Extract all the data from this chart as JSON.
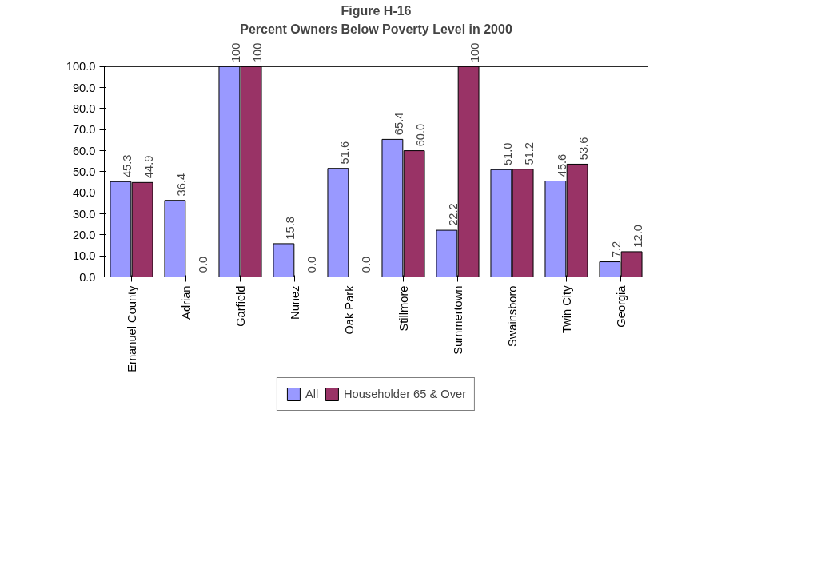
{
  "chart_data": {
    "type": "bar",
    "title": "Figure H-16",
    "subtitle": "Percent Owners Below Poverty Level in 2000",
    "categories": [
      "Emanuel County",
      "Adrian",
      "Garfield",
      "Nunez",
      "Oak Park",
      "Stillmore",
      "Summertown",
      "Swainsboro",
      "Twin City",
      "Georgia"
    ],
    "series": [
      {
        "name": "All",
        "color": "#9999ff",
        "values": [
          45.3,
          36.4,
          100,
          15.8,
          51.6,
          65.4,
          22.2,
          51.0,
          45.6,
          7.2
        ],
        "value_labels": [
          "45.3",
          "36.4",
          "100",
          "15.8",
          "51.6",
          "65.4",
          "22.2",
          "51.0",
          "45.6",
          "7.2"
        ]
      },
      {
        "name": "Householder 65 & Over",
        "color": "#993366",
        "values": [
          44.9,
          0.0,
          100,
          0.0,
          0.0,
          60.0,
          100,
          51.2,
          53.6,
          12.0
        ],
        "value_labels": [
          "44.9",
          "0.0",
          "100",
          "0.0",
          "0.0",
          "60.0",
          "100",
          "51.2",
          "53.6",
          "12.0"
        ]
      }
    ],
    "ylim": [
      0,
      100
    ],
    "yticks": [
      {
        "value": 0,
        "label": "0.0"
      },
      {
        "value": 10,
        "label": "10.0"
      },
      {
        "value": 20,
        "label": "20.0"
      },
      {
        "value": 30,
        "label": "30.0"
      },
      {
        "value": 40,
        "label": "40.0"
      },
      {
        "value": 50,
        "label": "50.0"
      },
      {
        "value": 60,
        "label": "60.0"
      },
      {
        "value": 70,
        "label": "70.0"
      },
      {
        "value": 80,
        "label": "80.0"
      },
      {
        "value": 90,
        "label": "90.0"
      },
      {
        "value": 100,
        "label": "100.0"
      }
    ],
    "grid": false,
    "legend": "bottom"
  }
}
